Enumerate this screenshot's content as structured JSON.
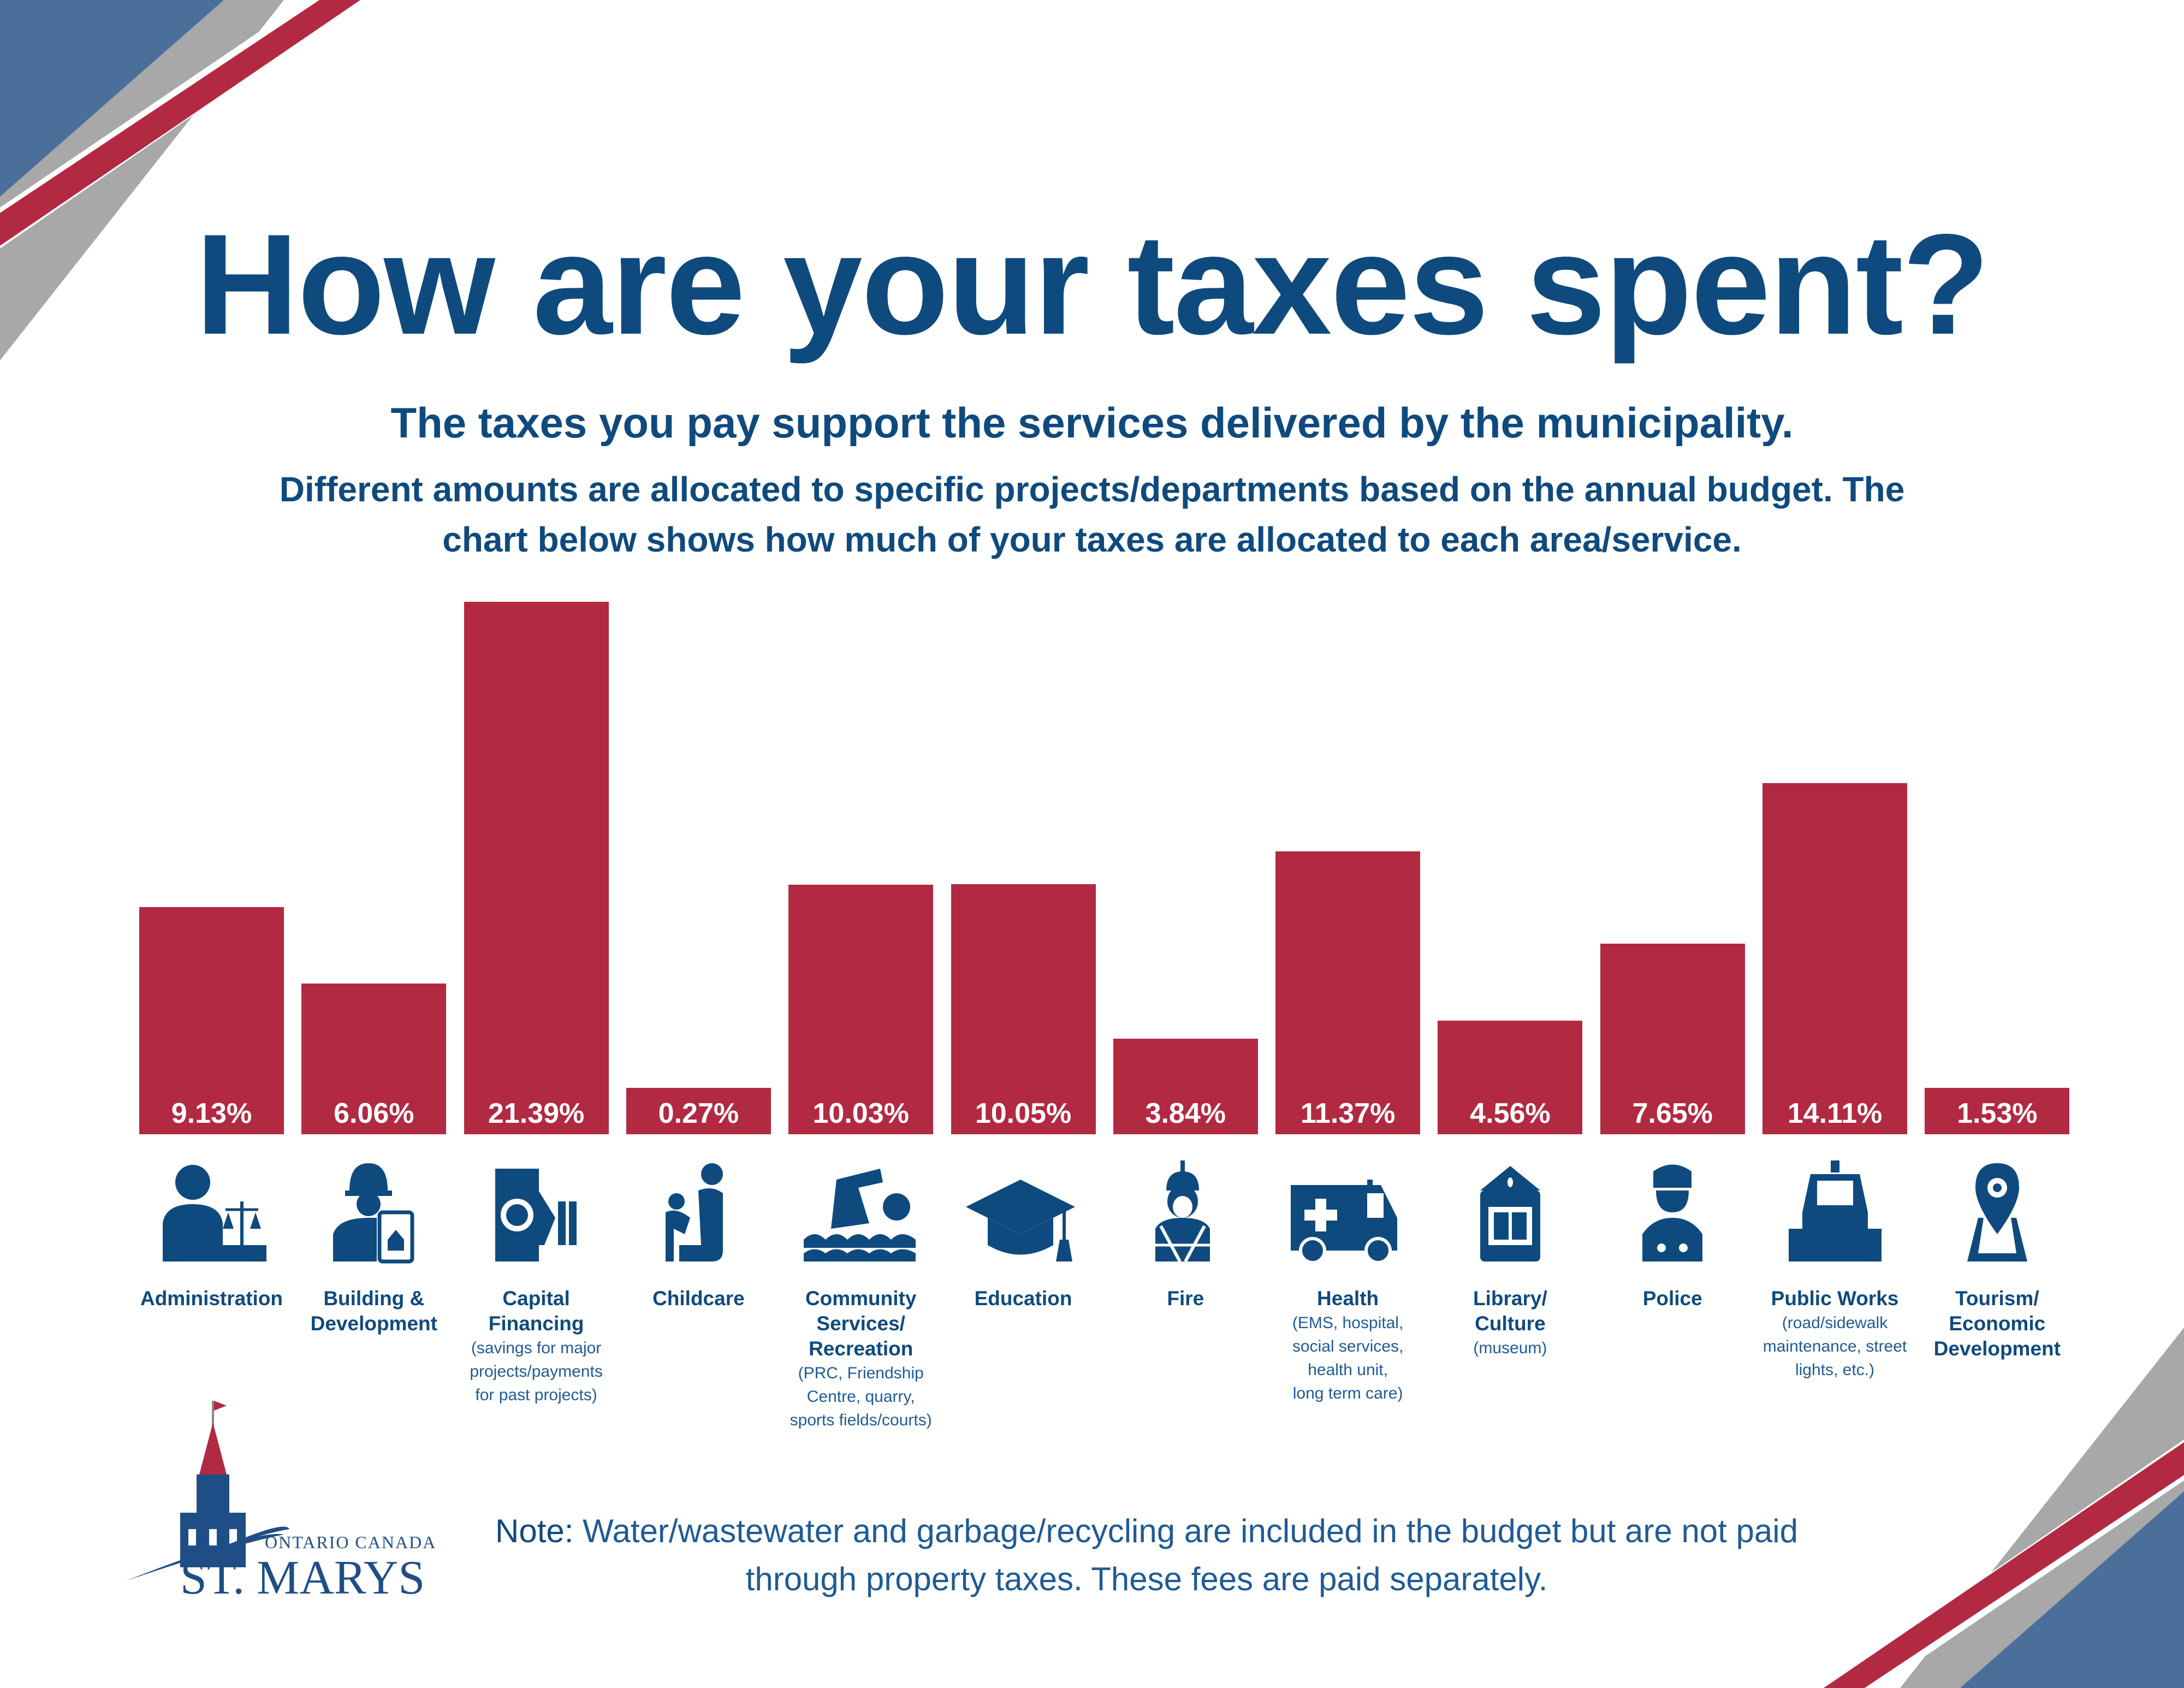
{
  "header": {
    "title": "How are your taxes spent?",
    "subtitle": "The taxes you pay support the services delivered by the municipality.",
    "description": "Different amounts are allocated to specific projects/departments based on the annual budget. The chart below shows how much of your taxes are allocated to each area/service."
  },
  "colors": {
    "bar": "#b22942",
    "text": "#0f4a7e",
    "accent_blue": "#4a6f9a",
    "accent_gray": "#a8a8a8"
  },
  "chart_data": {
    "type": "bar",
    "title": "",
    "xlabel": "",
    "ylabel": "",
    "unit": "%",
    "ylim": [
      0,
      21.39
    ],
    "grid": false,
    "categories": [
      "Administration",
      "Building & Development",
      "Capital Financing",
      "Childcare",
      "Community Services/ Recreation",
      "Education",
      "Fire",
      "Health",
      "Library/ Culture",
      "Police",
      "Public Works",
      "Tourism/ Economic Development"
    ],
    "values": [
      9.13,
      6.06,
      21.39,
      0.27,
      10.03,
      10.05,
      3.84,
      11.37,
      4.56,
      7.65,
      14.11,
      1.53
    ],
    "value_labels": [
      "9.13%",
      "6.06%",
      "21.39%",
      "0.27%",
      "10.03%",
      "10.05%",
      "3.84%",
      "11.37%",
      "4.56%",
      "7.65%",
      "14.11%",
      "1.53%"
    ],
    "category_lines": [
      {
        "name": [
          "Administration"
        ],
        "sub": [],
        "icon": "administrator-scales-icon"
      },
      {
        "name": [
          "Building &",
          "Development"
        ],
        "sub": [],
        "icon": "construction-worker-icon"
      },
      {
        "name": [
          "Capital",
          "Financing"
        ],
        "sub": [
          "(savings for major",
          "projects/payments",
          "for past projects)"
        ],
        "icon": "money-hand-icon"
      },
      {
        "name": [
          "Childcare"
        ],
        "sub": [],
        "icon": "parent-child-icon"
      },
      {
        "name": [
          "Community",
          "Services/",
          "Recreation"
        ],
        "sub": [
          "(PRC, Friendship",
          "Centre, quarry,",
          "sports fields/courts)"
        ],
        "icon": "swimmer-icon"
      },
      {
        "name": [
          "Education"
        ],
        "sub": [],
        "icon": "graduation-cap-icon"
      },
      {
        "name": [
          "Fire"
        ],
        "sub": [],
        "icon": "firefighter-icon"
      },
      {
        "name": [
          "Health"
        ],
        "sub": [
          "(EMS, hospital,",
          "social services,",
          "health unit,",
          "long term care)"
        ],
        "icon": "ambulance-icon"
      },
      {
        "name": [
          "Library/",
          "Culture"
        ],
        "sub": [
          "(museum)"
        ],
        "icon": "library-book-icon"
      },
      {
        "name": [
          "Police"
        ],
        "sub": [],
        "icon": "police-officer-icon"
      },
      {
        "name": [
          "Public Works"
        ],
        "sub": [
          "(road/sidewalk",
          "maintenance, street",
          "lights, etc.)"
        ],
        "icon": "snowplow-icon"
      },
      {
        "name": [
          "Tourism/",
          "Economic",
          "Development"
        ],
        "sub": [],
        "icon": "map-pin-icon"
      }
    ]
  },
  "logo": {
    "line1": "Ontario Canada",
    "line2": "ST. MARYS"
  },
  "note": {
    "label": "Note:",
    "text": " Water/wastewater and garbage/recycling are included in the budget but are not paid through property taxes. These fees are paid separately."
  }
}
